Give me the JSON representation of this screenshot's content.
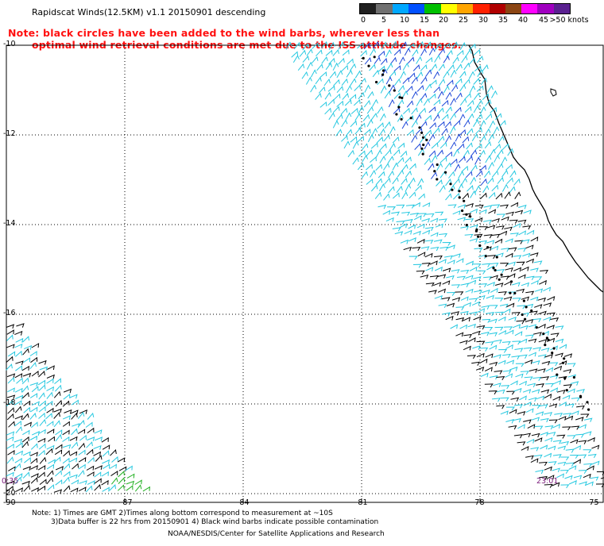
{
  "title": "Rapidscat Winds(12.5KM) v1.1 20150901 descending",
  "note": {
    "line1": "Note: black circles have been added to the wind barbs, wherever less than",
    "line2": "optimal wind retrieval conditions are met due to the ISS attitude changes."
  },
  "legend": {
    "labels": [
      "0",
      "5",
      "10",
      "15",
      "20",
      "25",
      "30",
      "35",
      "40",
      "45",
      ">50 knots"
    ],
    "colors": [
      "#202020",
      "#707070",
      "#00a8ff",
      "#0050ff",
      "#00c000",
      "#ffff00",
      "#ffa500",
      "#ff2000",
      "#b00000",
      "#8b4513",
      "#ff00ff",
      "#a000c0",
      "#5a2090"
    ]
  },
  "map": {
    "lat_labels": [
      "-10",
      "-12",
      "-14",
      "-16",
      "-18",
      "-20"
    ],
    "lon_labels": [
      "-90",
      "-87",
      "-84",
      "-81",
      "-78",
      "-75"
    ],
    "time_left": "0:35",
    "time_right": "23:01",
    "barb_colors": {
      "cyan": "#25c8e0",
      "blue": "#1c46d8",
      "black": "#000000",
      "green": "#20b020"
    },
    "coast_color": "#000000",
    "grid_color": "#000000"
  },
  "footer": {
    "note1": "Note: 1) Times are GMT 2)Times along bottom correspond to measurement at ~10S",
    "note2": "3)Data buffer is 22 hrs from 20150901 4) Black wind barbs indicate possible contamination",
    "credit": "NOAA/NESDIS/Center for Satellite Applications and Research"
  }
}
